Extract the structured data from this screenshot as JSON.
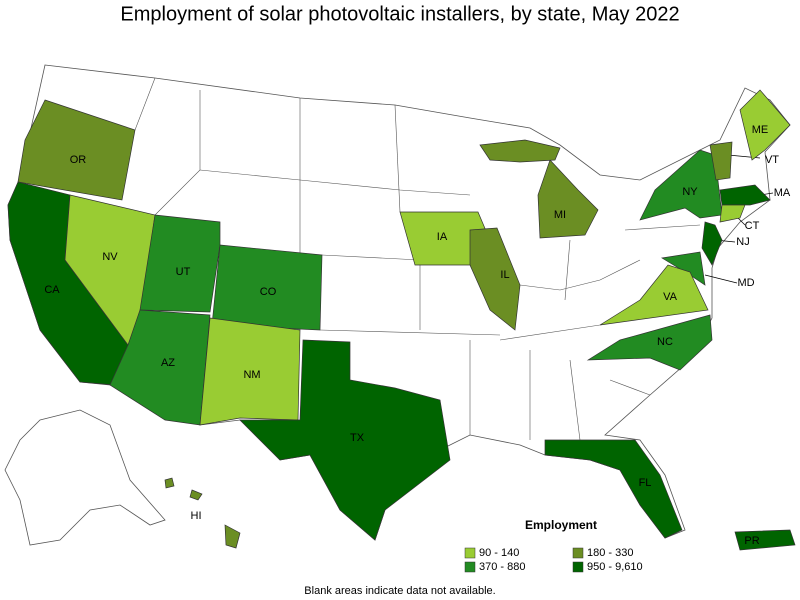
{
  "title": "Employment of solar photovoltaic installers, by state, May 2022",
  "legend": {
    "title": "Employment",
    "items": [
      {
        "label": "90 - 140",
        "color": "#99cc33"
      },
      {
        "label": "180 - 330",
        "color": "#6b8e23"
      },
      {
        "label": "370 - 880",
        "color": "#228b22"
      },
      {
        "label": "950 - 9,610",
        "color": "#006400"
      }
    ]
  },
  "states": [
    {
      "label": "OR",
      "color": "#6b8e23"
    },
    {
      "label": "CA",
      "color": "#006400"
    },
    {
      "label": "NV",
      "color": "#99cc33"
    },
    {
      "label": "UT",
      "color": "#228b22"
    },
    {
      "label": "CO",
      "color": "#228b22"
    },
    {
      "label": "AZ",
      "color": "#228b22"
    },
    {
      "label": "NM",
      "color": "#99cc33"
    },
    {
      "label": "TX",
      "color": "#006400"
    },
    {
      "label": "IA",
      "color": "#99cc33"
    },
    {
      "label": "IL",
      "color": "#6b8e23"
    },
    {
      "label": "MI",
      "color": "#6b8e23"
    },
    {
      "label": "NY",
      "color": "#228b22"
    },
    {
      "label": "ME",
      "color": "#99cc33"
    },
    {
      "label": "VT",
      "color": "#6b8e23"
    },
    {
      "label": "MA",
      "color": "#006400"
    },
    {
      "label": "CT",
      "color": "#99cc33"
    },
    {
      "label": "NJ",
      "color": "#006400"
    },
    {
      "label": "MD",
      "color": "#228b22"
    },
    {
      "label": "VA",
      "color": "#99cc33"
    },
    {
      "label": "NC",
      "color": "#228b22"
    },
    {
      "label": "FL",
      "color": "#006400"
    },
    {
      "label": "HI",
      "color": "#6b8e23"
    },
    {
      "label": "PR",
      "color": "#006400"
    }
  ],
  "footnote": "Blank areas indicate data not available."
}
